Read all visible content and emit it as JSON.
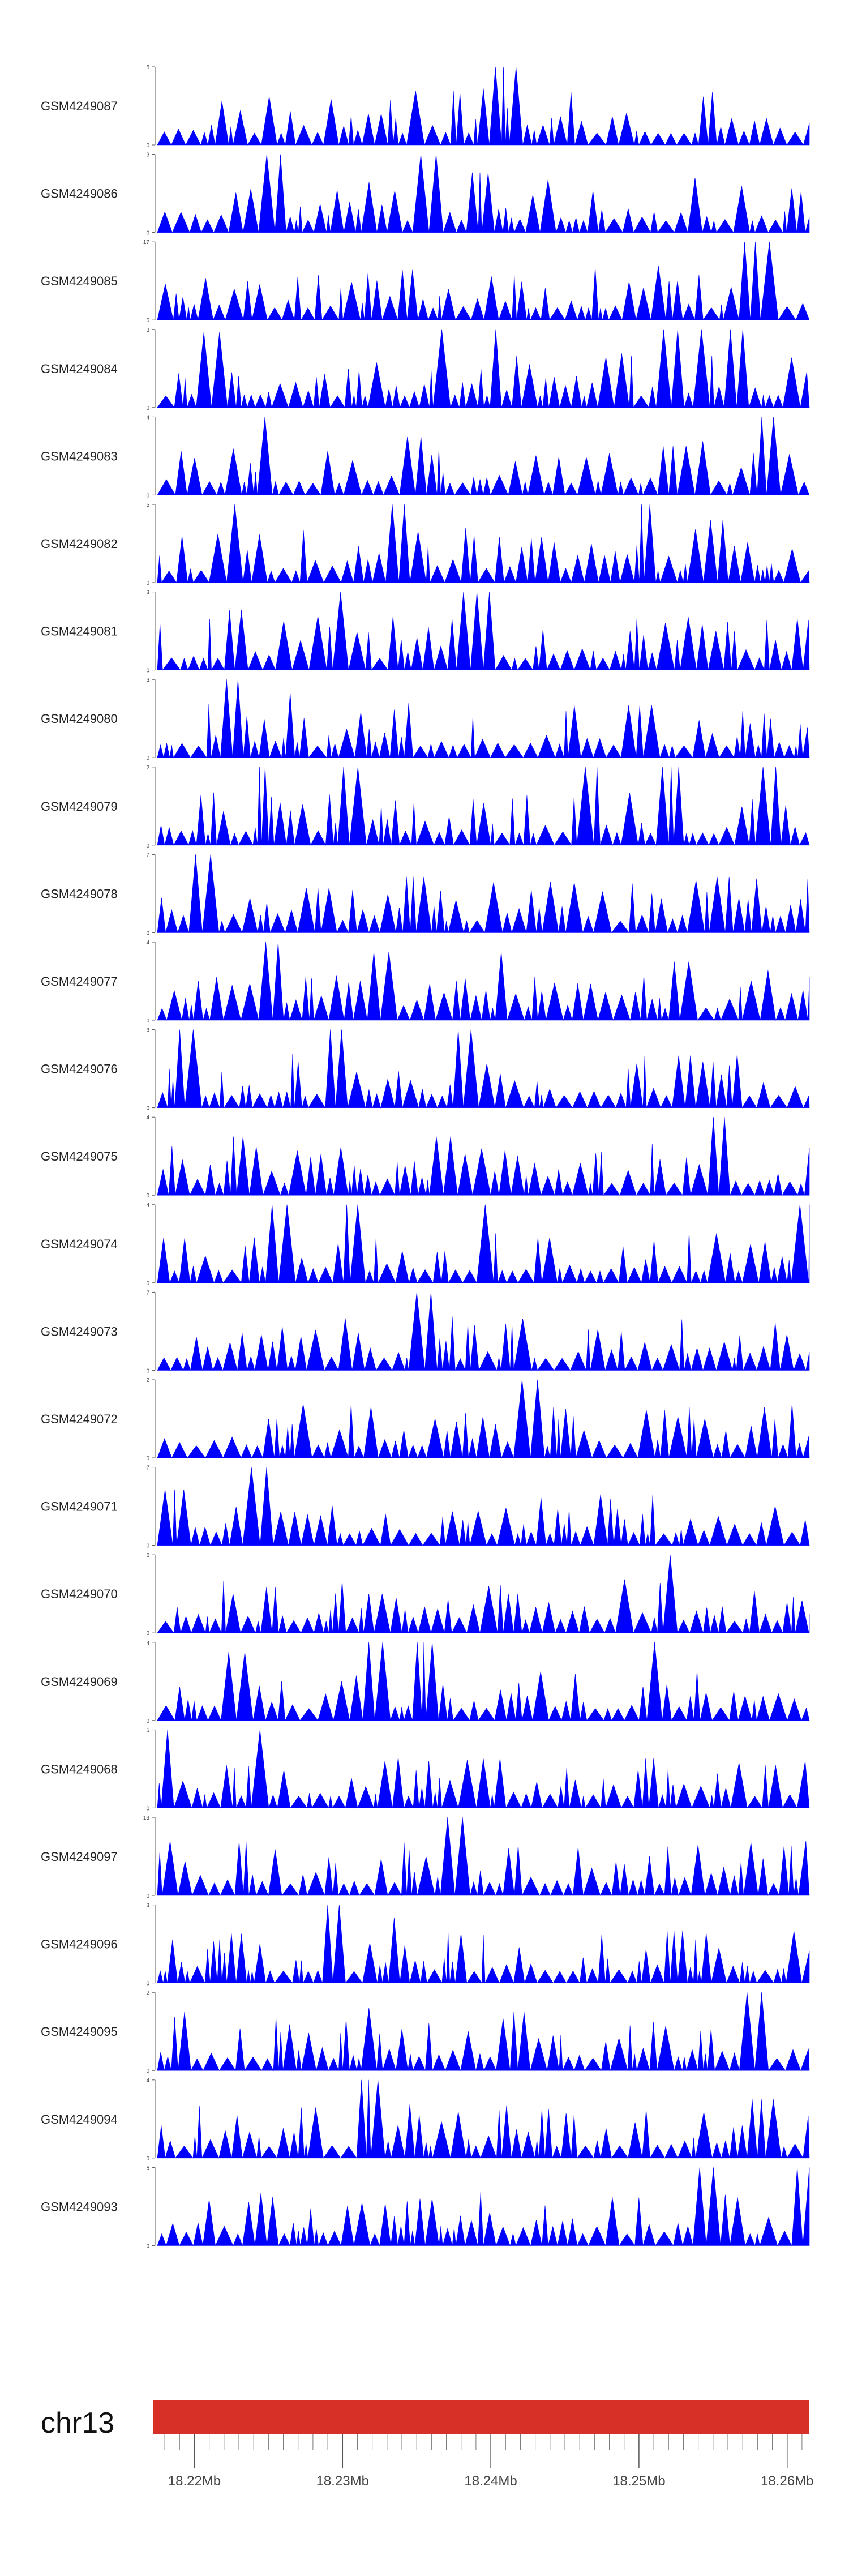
{
  "chart_data": {
    "type": "area",
    "color": "#0000ff",
    "chromosome": {
      "name": "chr13",
      "color": "#d73027",
      "range_mb": [
        18.2175,
        18.2615
      ],
      "ticks": [
        "18.22Mb",
        "18.23Mb",
        "18.24Mb",
        "18.25Mb",
        "18.26Mb"
      ],
      "tick_values_mb": [
        18.22,
        18.23,
        18.24,
        18.25,
        18.26
      ]
    },
    "tracks": [
      {
        "name": "GSM4249087",
        "ymax": "5",
        "ymin": "0",
        "ymax_val": 5,
        "peak_mb": 18.2408,
        "peaks": [
          [
            18.2221,
            2.8
          ],
          [
            18.2229,
            2.2
          ],
          [
            18.2324,
            2.0
          ],
          [
            18.2393,
            3.6
          ],
          [
            18.2408,
            5.0
          ],
          [
            18.2585,
            1.4
          ]
        ]
      },
      {
        "name": "GSM4249086",
        "ymax": "3",
        "ymin": "0",
        "ymax_val": 3,
        "peak_mb": 18.2361,
        "peaks": [
          [
            18.2257,
            3.0
          ],
          [
            18.2361,
            3.0
          ],
          [
            18.2395,
            2.3
          ],
          [
            18.2469,
            1.6
          ]
        ]
      },
      {
        "name": "GSM4249085",
        "ymax": "17",
        "ymin": "0",
        "ymax_val": 17,
        "peak_mb": 18.2578,
        "peaks": [
          [
            18.2195,
            2.5
          ],
          [
            18.2304,
            3.0
          ],
          [
            18.2523,
            8.5
          ],
          [
            18.2578,
            17.0
          ]
        ]
      },
      {
        "name": "GSM4249084",
        "ymax": "3",
        "ymin": "0",
        "ymax_val": 3,
        "peak_mb": 18.2543,
        "peaks": [
          [
            18.2207,
            2.9
          ],
          [
            18.2367,
            3.0
          ],
          [
            18.2403,
            3.0
          ],
          [
            18.2519,
            3.0
          ],
          [
            18.2543,
            3.0
          ],
          [
            18.2566,
            3.0
          ]
        ]
      },
      {
        "name": "GSM4249083",
        "ymax": "4",
        "ymin": "0",
        "ymax_val": 4,
        "peak_mb": 18.2587,
        "peaks": [
          [
            18.2247,
            4.0
          ],
          [
            18.2347,
            3.0
          ],
          [
            18.2522,
            2.5
          ],
          [
            18.2587,
            4.0
          ]
        ]
      },
      {
        "name": "GSM4249082",
        "ymax": "5",
        "ymin": "0",
        "ymax_val": 5,
        "peak_mb": 18.2229,
        "peaks": [
          [
            18.2229,
            5.0
          ],
          [
            18.2335,
            5.0
          ],
          [
            18.2504,
            5.0
          ],
          [
            18.2554,
            4.0
          ]
        ]
      },
      {
        "name": "GSM4249081",
        "ymax": "3",
        "ymin": "0",
        "ymax_val": 3,
        "peak_mb": 18.2297,
        "peaks": [
          [
            18.2229,
            2.3
          ],
          [
            18.2297,
            3.0
          ],
          [
            18.2391,
            3.0
          ],
          [
            18.2555,
            1.5
          ]
        ]
      },
      {
        "name": "GSM4249080",
        "ymax": "3",
        "ymin": "0",
        "ymax_val": 3,
        "peak_mb": 18.2223,
        "peaks": [
          [
            18.2223,
            3.0
          ],
          [
            18.2265,
            2.5
          ],
          [
            18.2456,
            2.0
          ],
          [
            18.2501,
            2.0
          ]
        ]
      },
      {
        "name": "GSM4249079",
        "ymax": "2",
        "ymin": "0",
        "ymax_val": 2,
        "peak_mb": 18.2245,
        "peaks": [
          [
            18.2245,
            2.0
          ],
          [
            18.2305,
            2.0
          ],
          [
            18.2468,
            2.0
          ],
          [
            18.2521,
            2.0
          ],
          [
            18.2588,
            2.0
          ]
        ]
      },
      {
        "name": "GSM4249078",
        "ymax": "7",
        "ymin": "0",
        "ymax_val": 7,
        "peak_mb": 18.2205,
        "peaks": [
          [
            18.2205,
            7.0
          ],
          [
            18.2283,
            4.0
          ],
          [
            18.2347,
            5.0
          ],
          [
            18.2556,
            5.0
          ]
        ]
      },
      {
        "name": "GSM4249077",
        "ymax": "4",
        "ymin": "0",
        "ymax_val": 4,
        "peak_mb": 18.2257,
        "peaks": [
          [
            18.2257,
            4.0
          ],
          [
            18.2325,
            3.5
          ],
          [
            18.2405,
            3.5
          ],
          [
            18.2527,
            3.0
          ]
        ]
      },
      {
        "name": "GSM4249076",
        "ymax": "3",
        "ymin": "0",
        "ymax_val": 3,
        "peak_mb": 18.2296,
        "peaks": [
          [
            18.2191,
            3.0
          ],
          [
            18.2296,
            3.0
          ],
          [
            18.2383,
            3.0
          ],
          [
            18.253,
            2.0
          ]
        ]
      },
      {
        "name": "GSM4249075",
        "ymax": "4",
        "ymin": "0",
        "ymax_val": 4,
        "peak_mb": 18.2555,
        "peaks": [
          [
            18.2228,
            3.0
          ],
          [
            18.2366,
            3.0
          ],
          [
            18.2555,
            4.0
          ]
        ]
      },
      {
        "name": "GSM4249074",
        "ymax": "4",
        "ymin": "0",
        "ymax_val": 4,
        "peak_mb": 18.2306,
        "peaks": [
          [
            18.2261,
            4.0
          ],
          [
            18.2306,
            4.0
          ],
          [
            18.2398,
            4.0
          ],
          [
            18.2615,
            4.0
          ]
        ]
      },
      {
        "name": "GSM4249073",
        "ymax": "7",
        "ymin": "0",
        "ymax_val": 7,
        "peak_mb": 18.2358,
        "peaks": [
          [
            18.2201,
            3.0
          ],
          [
            18.2275,
            3.0
          ],
          [
            18.2358,
            7.0
          ],
          [
            18.2545,
            2.0
          ]
        ]
      },
      {
        "name": "GSM4249072",
        "ymax": "2",
        "ymin": "0",
        "ymax_val": 2,
        "peak_mb": 18.2424,
        "peaks": [
          [
            18.2254,
            1.0
          ],
          [
            18.2362,
            1.0
          ],
          [
            18.2424,
            2.0
          ],
          [
            18.2535,
            1.0
          ]
        ]
      },
      {
        "name": "GSM4249071",
        "ymax": "7",
        "ymin": "0",
        "ymax_val": 7,
        "peak_mb": 18.2245,
        "peaks": [
          [
            18.2186,
            5.0
          ],
          [
            18.2245,
            7.0
          ],
          [
            18.2265,
            3.0
          ],
          [
            18.2591,
            3.5
          ]
        ]
      },
      {
        "name": "GSM4249070",
        "ymax": "6",
        "ymin": "0",
        "ymax_val": 6,
        "peak_mb": 18.2521,
        "peaks": [
          [
            18.2251,
            3.5
          ],
          [
            18.2323,
            3.0
          ],
          [
            18.2418,
            3.0
          ],
          [
            18.2521,
            6.0
          ]
        ]
      },
      {
        "name": "GSM4249069",
        "ymax": "4",
        "ymin": "0",
        "ymax_val": 4,
        "peak_mb": 18.2354,
        "peaks": [
          [
            18.2228,
            3.5
          ],
          [
            18.2321,
            4.0
          ],
          [
            18.2354,
            4.0
          ],
          [
            18.2512,
            4.0
          ]
        ]
      },
      {
        "name": "GSM4249068",
        "ymax": "5",
        "ymin": "0",
        "ymax_val": 5,
        "peak_mb": 18.2245,
        "peaks": [
          [
            18.218,
            5.0
          ],
          [
            18.2245,
            5.0
          ],
          [
            18.2328,
            3.0
          ],
          [
            18.2394,
            2.0
          ]
        ]
      },
      {
        "name": "GSM4249097",
        "ymax": "13",
        "ymin": "0",
        "ymax_val": 13,
        "peak_mb": 18.2372,
        "peaks": [
          [
            18.2233,
            9.0
          ],
          [
            18.2372,
            13.0
          ],
          [
            18.2523,
            3.0
          ],
          [
            18.261,
            6.0
          ]
        ]
      },
      {
        "name": "GSM4249096",
        "ymax": "3",
        "ymin": "0",
        "ymax_val": 3,
        "peak_mb": 18.2296,
        "peaks": [
          [
            18.2243,
            1.5
          ],
          [
            18.2296,
            3.0
          ],
          [
            18.2334,
            2.5
          ],
          [
            18.2523,
            2.0
          ],
          [
            18.2603,
            2.0
          ]
        ]
      },
      {
        "name": "GSM4249095",
        "ymax": "2",
        "ymin": "0",
        "ymax_val": 2,
        "peak_mb": 18.2575,
        "peaks": [
          [
            18.2193,
            1.5
          ],
          [
            18.2318,
            1.6
          ],
          [
            18.242,
            1.5
          ],
          [
            18.2575,
            2.0
          ]
        ]
      },
      {
        "name": "GSM4249094",
        "ymax": "4",
        "ymin": "0",
        "ymax_val": 4,
        "peak_mb": 18.2319,
        "peaks": [
          [
            18.2319,
            4.0
          ],
          [
            18.2437,
            2.5
          ],
          [
            18.2583,
            3.0
          ]
        ]
      },
      {
        "name": "GSM4249093",
        "ymax": "5",
        "ymin": "0",
        "ymax_val": 5,
        "peak_mb": 18.2541,
        "peaks": [
          [
            18.2353,
            3.0
          ],
          [
            18.2541,
            5.0
          ],
          [
            18.2614,
            5.0
          ]
        ]
      }
    ]
  }
}
